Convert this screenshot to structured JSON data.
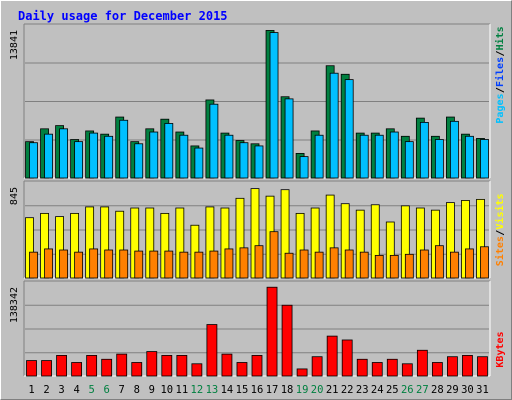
{
  "title": "Daily usage for December 2015",
  "colors": {
    "background": "#c0c0c0",
    "pages": "#00c0ff",
    "files": "#0040ff",
    "hits": "#008040",
    "visits": "#ffff00",
    "sites": "#ff8000",
    "kbytes": "#ff0000",
    "weekend_label": "#008040"
  },
  "chart_data": [
    {
      "type": "bar",
      "panel": "hits-files-pages",
      "ymax_label": "13841",
      "ylim": [
        0,
        13841
      ],
      "legend": [
        {
          "name": "Pages",
          "color": "#00c0ff"
        },
        {
          "name": "Files",
          "color": "#0040ff"
        },
        {
          "name": "Hits",
          "color": "#008040"
        }
      ],
      "categories": [
        "1",
        "2",
        "3",
        "4",
        "5",
        "6",
        "7",
        "8",
        "9",
        "10",
        "11",
        "12",
        "13",
        "14",
        "15",
        "16",
        "17",
        "18",
        "19",
        "20",
        "21",
        "22",
        "23",
        "24",
        "25",
        "26",
        "27",
        "28",
        "29",
        "30",
        "31"
      ],
      "weekend_days": [
        "5",
        "6",
        "12",
        "13",
        "19",
        "20",
        "26",
        "27"
      ],
      "series": [
        {
          "name": "Hits",
          "values": [
            3400,
            4600,
            4900,
            3600,
            4400,
            4100,
            5700,
            3400,
            4600,
            5500,
            4300,
            3000,
            7300,
            4200,
            3500,
            3200,
            13800,
            7600,
            2300,
            4400,
            10500,
            9700,
            4200,
            4200,
            4600,
            3900,
            5600,
            3900,
            5700,
            4100,
            3700
          ]
        },
        {
          "name": "Pages",
          "values": [
            3300,
            4100,
            4600,
            3400,
            4200,
            3900,
            5400,
            3200,
            4300,
            5100,
            4000,
            2800,
            6900,
            4000,
            3300,
            3000,
            13600,
            7400,
            2000,
            4000,
            9800,
            9200,
            4000,
            4000,
            4300,
            3400,
            5200,
            3600,
            5300,
            3900,
            3600
          ]
        }
      ]
    },
    {
      "type": "bar",
      "panel": "visits-sites",
      "ymax_label": "845",
      "ylim": [
        0,
        845
      ],
      "legend": [
        {
          "name": "Sites",
          "color": "#ff8000"
        },
        {
          "name": "Visits",
          "color": "#ffff00"
        }
      ],
      "categories": [
        "1",
        "2",
        "3",
        "4",
        "5",
        "6",
        "7",
        "8",
        "9",
        "10",
        "11",
        "12",
        "13",
        "14",
        "15",
        "16",
        "17",
        "18",
        "19",
        "20",
        "21",
        "22",
        "23",
        "24",
        "25",
        "26",
        "27",
        "28",
        "29",
        "30",
        "31"
      ],
      "series": [
        {
          "name": "Visits",
          "values": [
            560,
            600,
            570,
            600,
            660,
            660,
            620,
            650,
            650,
            600,
            650,
            490,
            660,
            650,
            740,
            830,
            760,
            820,
            600,
            650,
            770,
            690,
            630,
            680,
            520,
            670,
            650,
            630,
            700,
            720,
            730
          ]
        },
        {
          "name": "Sites",
          "values": [
            240,
            270,
            260,
            240,
            270,
            260,
            260,
            250,
            250,
            250,
            240,
            240,
            250,
            270,
            280,
            300,
            430,
            230,
            260,
            240,
            280,
            260,
            240,
            210,
            210,
            220,
            260,
            300,
            240,
            270,
            290
          ]
        }
      ]
    },
    {
      "type": "bar",
      "panel": "kbytes",
      "ymax_label": "138342",
      "ylim": [
        0,
        138342
      ],
      "legend": [
        {
          "name": "KBytes",
          "color": "#ff0000"
        }
      ],
      "categories": [
        "1",
        "2",
        "3",
        "4",
        "5",
        "6",
        "7",
        "8",
        "9",
        "10",
        "11",
        "12",
        "13",
        "14",
        "15",
        "16",
        "17",
        "18",
        "19",
        "20",
        "21",
        "22",
        "23",
        "24",
        "25",
        "26",
        "27",
        "28",
        "29",
        "30",
        "31"
      ],
      "series": [
        {
          "name": "KBytes",
          "values": [
            24000,
            24000,
            32000,
            21000,
            32000,
            26000,
            34000,
            21000,
            38000,
            32000,
            32000,
            19000,
            80000,
            34000,
            21000,
            32000,
            138000,
            110000,
            11000,
            30000,
            62000,
            56000,
            26000,
            21000,
            26000,
            19000,
            40000,
            21000,
            30000,
            32000,
            30000
          ]
        }
      ]
    }
  ]
}
